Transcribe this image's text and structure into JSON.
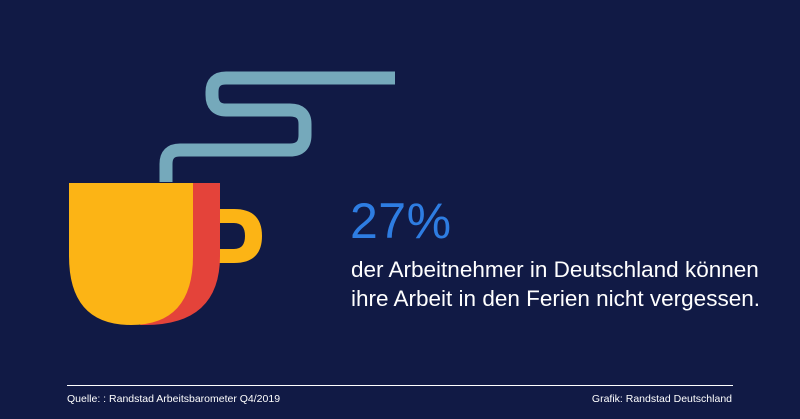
{
  "stat": {
    "value": "27%"
  },
  "statement": {
    "text": "der Arbeitnehmer in Deutschland können ihre Arbeit in den Ferien nicht vergessen."
  },
  "footer": {
    "source": "Quelle: : Randstad Arbeitsbarometer Q4/2019",
    "credit": "Grafik: Randstad Deutschland"
  },
  "colors": {
    "background": "#111a45",
    "accent_blue": "#2e7de2",
    "cup_yellow": "#fcb415",
    "cup_red": "#e4433a",
    "steam_blue": "#75a9bb"
  },
  "icons": {
    "illustration": "coffee-cup-icon"
  }
}
